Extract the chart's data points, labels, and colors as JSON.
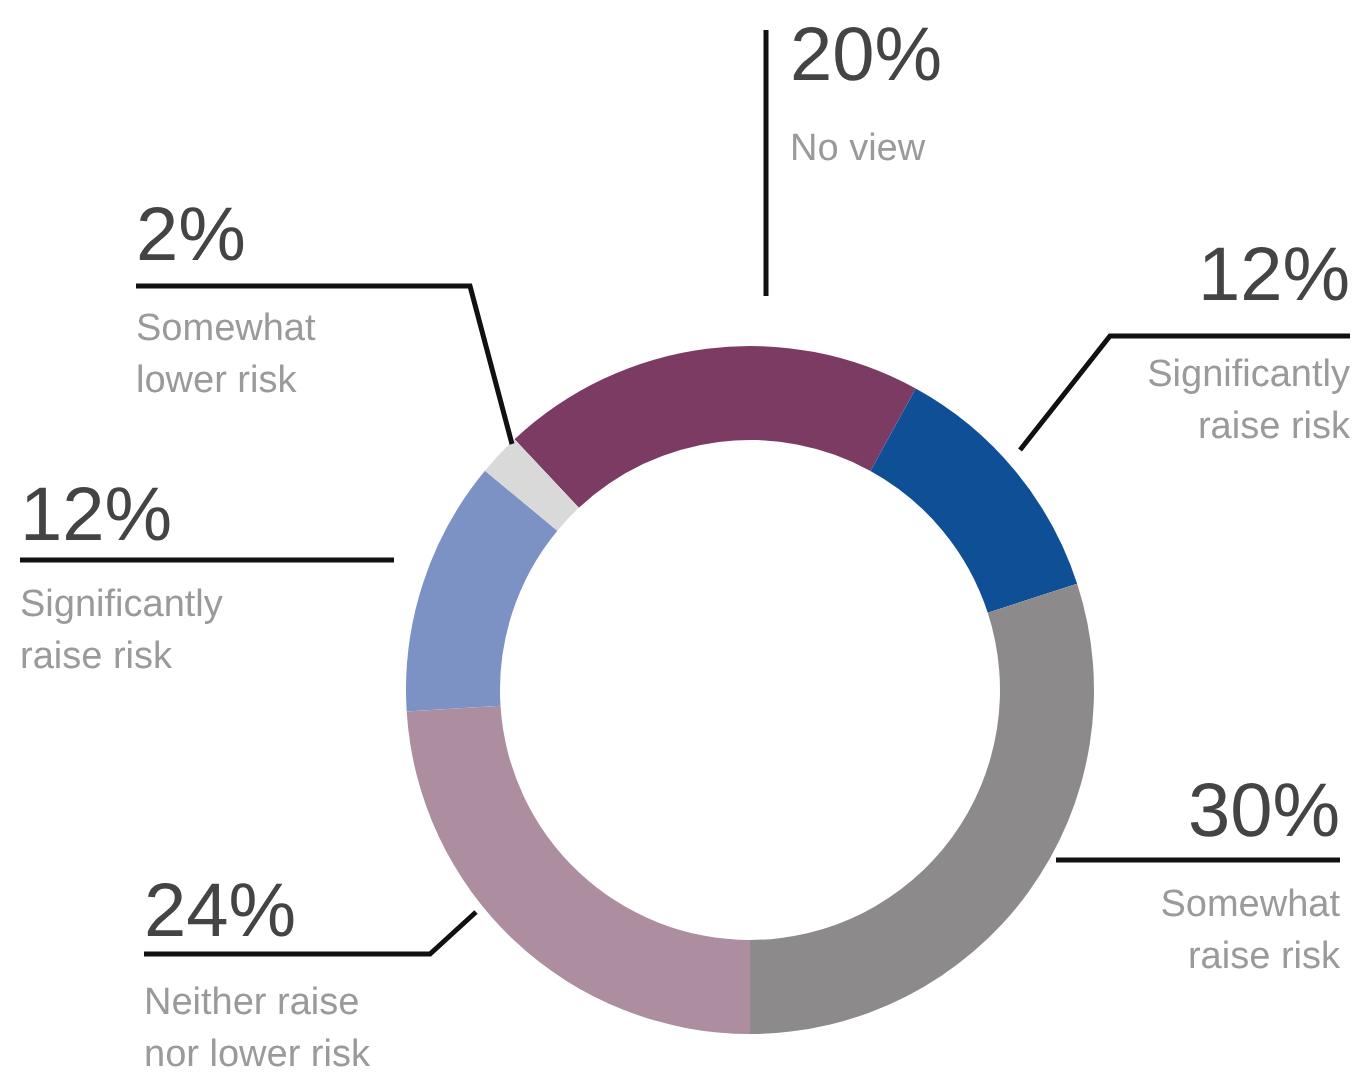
{
  "chart_data": {
    "type": "donut",
    "categories": [
      "No view",
      "Significantly raise risk",
      "Somewhat raise risk",
      "Neither raise nor lower risk",
      "Significantly raise risk",
      "Somewhat lower risk"
    ],
    "values": [
      20,
      12,
      30,
      24,
      12,
      2
    ],
    "colors": [
      "#7b3b63",
      "#0f4f96",
      "#8c8a8b",
      "#ad8ea0",
      "#7c92c4",
      "#d9d9d9"
    ],
    "value_labels": [
      "20%",
      "12%",
      "30%",
      "24%",
      "12%",
      "2%"
    ],
    "legend": false
  }
}
